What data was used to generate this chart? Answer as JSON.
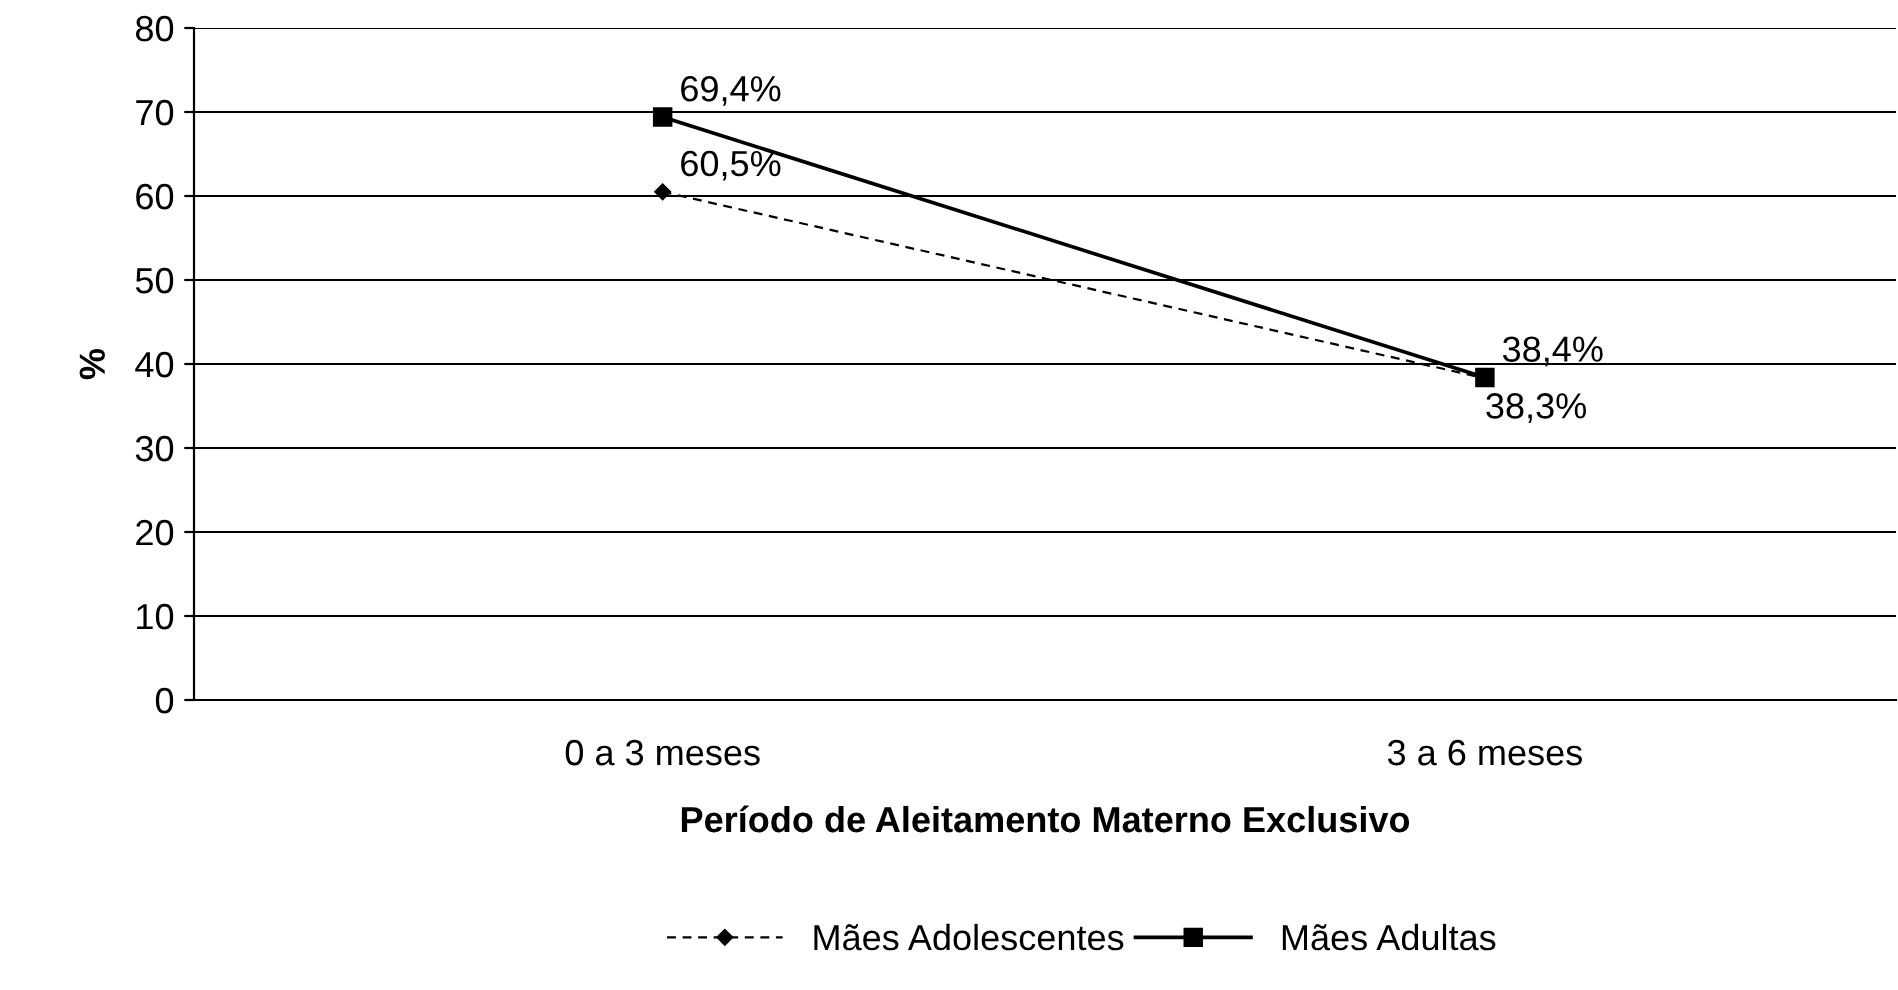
{
  "chart_data": {
    "type": "line",
    "xlabel": "Período de Aleitamento Materno Exclusivo",
    "ylabel": "%",
    "categories": [
      "0 a 3 meses",
      "3 a 6 meses"
    ],
    "series": [
      {
        "name": "Mães Adolescentes",
        "color": "#000000",
        "values": [
          60.5,
          38.3
        ],
        "value_labels": [
          "60,5%",
          "38,3%"
        ],
        "marker": "diamond",
        "line_style": "dashed"
      },
      {
        "name": "Mães Adultas",
        "color": "#000000",
        "values": [
          69.4,
          38.4
        ],
        "value_labels": [
          "69,4%",
          "38,4%"
        ],
        "marker": "square",
        "line_style": "solid"
      }
    ],
    "ylim": [
      0,
      80
    ],
    "yticks": [
      0,
      10,
      20,
      30,
      40,
      50,
      60,
      70,
      80
    ],
    "grid": "y",
    "legend": "bottom"
  }
}
